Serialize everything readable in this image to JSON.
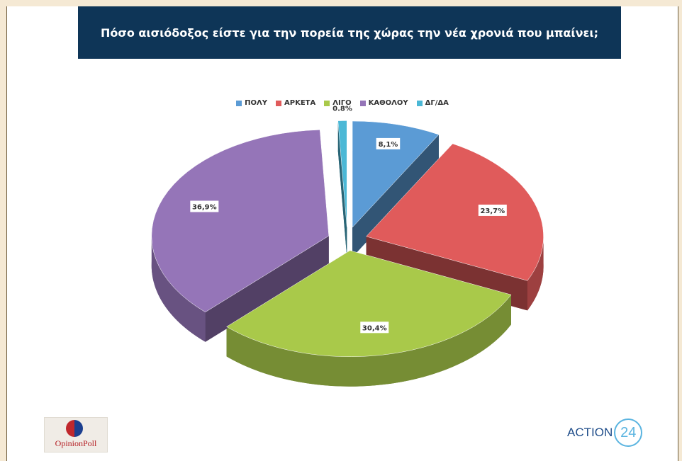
{
  "title": "Πόσο αισιόδοξος είστε για την πορεία της χώρας την νέα χρονιά που μπαίνει;",
  "chart_data": {
    "type": "pie",
    "categories": [
      "ΠΟΛΥ",
      "ΑΡΚΕΤΑ",
      "ΛΙΓΟ",
      "ΚΑΘΟΛΟΥ",
      "ΔΓ/ΔΑ"
    ],
    "values": [
      8.1,
      23.7,
      30.4,
      36.9,
      0.8
    ],
    "data_labels": [
      "8,1%",
      "23,7%",
      "30,4%",
      "36,9%",
      "0.8%"
    ],
    "colors": [
      "#5b9bd5",
      "#e05b5b",
      "#a9c94a",
      "#9575b8",
      "#4bb8d6"
    ],
    "style": "3d-exploded",
    "legend_position": "top"
  },
  "logos": {
    "opinion_poll": "OpinionPoll",
    "action24_word": "ACTION",
    "action24_num": "24"
  }
}
